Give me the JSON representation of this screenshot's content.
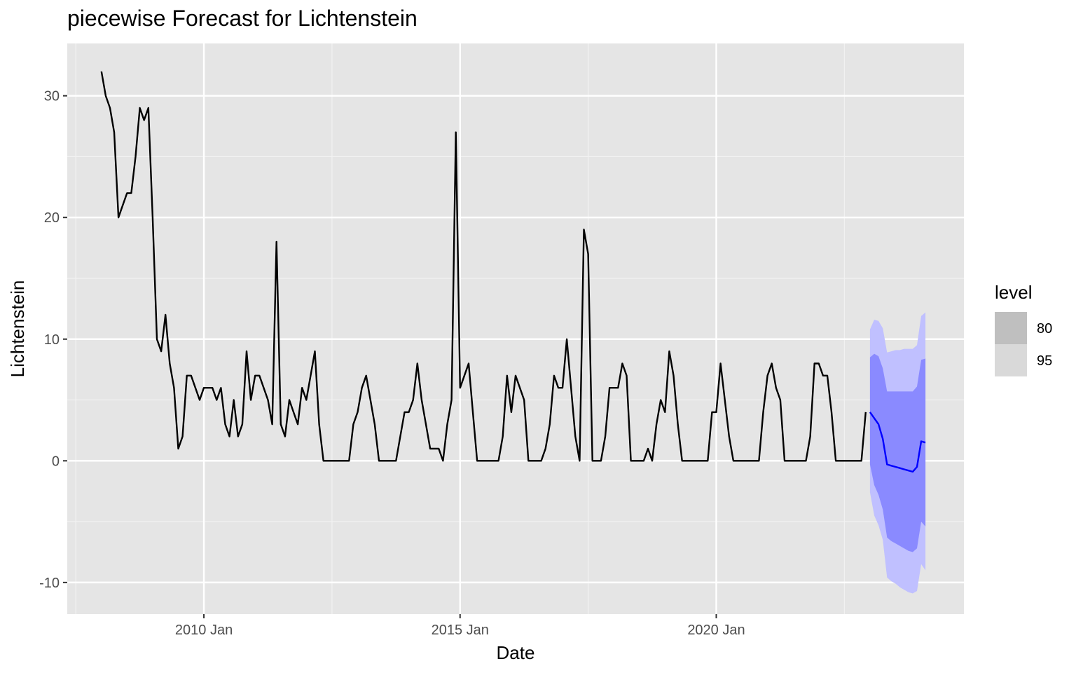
{
  "chart_data": {
    "type": "line",
    "title": "piecewise Forecast for Lichtenstein",
    "xlabel": "Date",
    "ylabel": "Lichtenstein",
    "x_ticks": [
      "2010 Jan",
      "2015 Jan",
      "2020 Jan"
    ],
    "y_ticks": [
      "-10",
      "0",
      "10",
      "20",
      "30"
    ],
    "ylim": [
      -12.6,
      34.3
    ],
    "xlim": [
      "2007-05",
      "2024-11"
    ],
    "grid": true,
    "colors": {
      "history": "#000000",
      "forecast": "#0000ff",
      "band80": "#8a8aff",
      "band95": "#c0c0ff",
      "panel": "#e5e5e5"
    },
    "history": {
      "start": "2008-01",
      "frequency": "monthly",
      "values": [
        32,
        30,
        29,
        27,
        20,
        21,
        22,
        22,
        25,
        29,
        28,
        29,
        20,
        10,
        9,
        12,
        8,
        6,
        1,
        2,
        7,
        7,
        6,
        5,
        6,
        6,
        6,
        5,
        6,
        3,
        2,
        5,
        2,
        3,
        9,
        5,
        7,
        7,
        6,
        5,
        3,
        18,
        3,
        2,
        5,
        4,
        3,
        6,
        5,
        7,
        9,
        3,
        0,
        0,
        0,
        0,
        0,
        0,
        0,
        3,
        4,
        6,
        7,
        5,
        3,
        0,
        0,
        0,
        0,
        0,
        2,
        4,
        4,
        5,
        8,
        5,
        3,
        1,
        1,
        1,
        0,
        3,
        5,
        27,
        6,
        7,
        8,
        4,
        0,
        0,
        0,
        0,
        0,
        0,
        2,
        7,
        4,
        7,
        6,
        5,
        0,
        0,
        0,
        0,
        1,
        3,
        7,
        6,
        6,
        10,
        6,
        2,
        0,
        19,
        17,
        0,
        0,
        0,
        2,
        6,
        6,
        6,
        8,
        7,
        0,
        0,
        0,
        0,
        1,
        0,
        3,
        5,
        4,
        9,
        7,
        3,
        0,
        0,
        0,
        0,
        0,
        0,
        0,
        4,
        4,
        8,
        5,
        2,
        0,
        0,
        0,
        0,
        0,
        0,
        0,
        4,
        7,
        8,
        6,
        5,
        0,
        0,
        0,
        0,
        0,
        0,
        2,
        8,
        8,
        7,
        7,
        4,
        0,
        0,
        0,
        0,
        0,
        0,
        0,
        4
      ]
    },
    "forecast": {
      "start": "2023-01",
      "frequency": "monthly",
      "mean": [
        4.0,
        3.5,
        3.0,
        1.8,
        -0.3,
        -0.4,
        -0.5,
        -0.6,
        -0.7,
        -0.8,
        -0.9,
        -0.5,
        1.6,
        1.5
      ],
      "lo80": [
        -0.3,
        -2.0,
        -2.8,
        -4.0,
        -6.3,
        -6.6,
        -6.8,
        -7.0,
        -7.2,
        -7.4,
        -7.5,
        -7.2,
        -5.0,
        -5.4
      ],
      "hi80": [
        8.5,
        8.8,
        8.6,
        7.6,
        5.7,
        5.7,
        5.7,
        5.7,
        5.7,
        5.7,
        5.7,
        6.1,
        8.3,
        8.4
      ],
      "lo95": [
        -2.6,
        -4.5,
        -5.3,
        -6.5,
        -9.6,
        -9.9,
        -10.1,
        -10.4,
        -10.6,
        -10.8,
        -10.9,
        -10.7,
        -8.5,
        -9.0
      ],
      "hi95": [
        10.8,
        11.6,
        11.5,
        10.9,
        8.9,
        9.0,
        9.1,
        9.1,
        9.2,
        9.2,
        9.2,
        9.5,
        11.9,
        12.2
      ]
    },
    "legend": {
      "title": "level",
      "position": "right",
      "items": [
        {
          "label": "80",
          "color": "#bfbfbf"
        },
        {
          "label": "95",
          "color": "#d9d9d9"
        }
      ]
    }
  }
}
